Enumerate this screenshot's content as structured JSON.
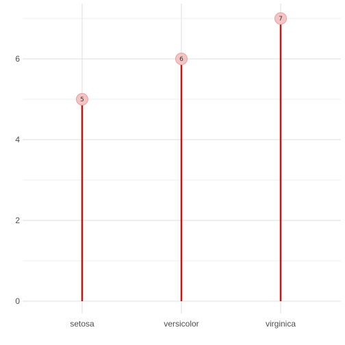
{
  "chart_data": {
    "type": "lollipop",
    "categories": [
      "setosa",
      "versicolor",
      "virginica"
    ],
    "values": [
      5,
      6,
      7
    ],
    "data_labels": [
      "5",
      "6",
      "7"
    ],
    "title": "",
    "xlabel": "",
    "ylabel": "",
    "ylim": [
      0,
      7.3
    ],
    "y_ticks": [
      0,
      2,
      4,
      6
    ],
    "y_tick_labels": [
      "0",
      "2",
      "4",
      "6"
    ],
    "grid": true,
    "legend": "none",
    "colors": {
      "stem": "#cc1111",
      "point_fill": "#f4c4c4",
      "point_stroke": "#e8a0a0",
      "grid": "#dedede",
      "text": "#4d4d4d"
    }
  }
}
